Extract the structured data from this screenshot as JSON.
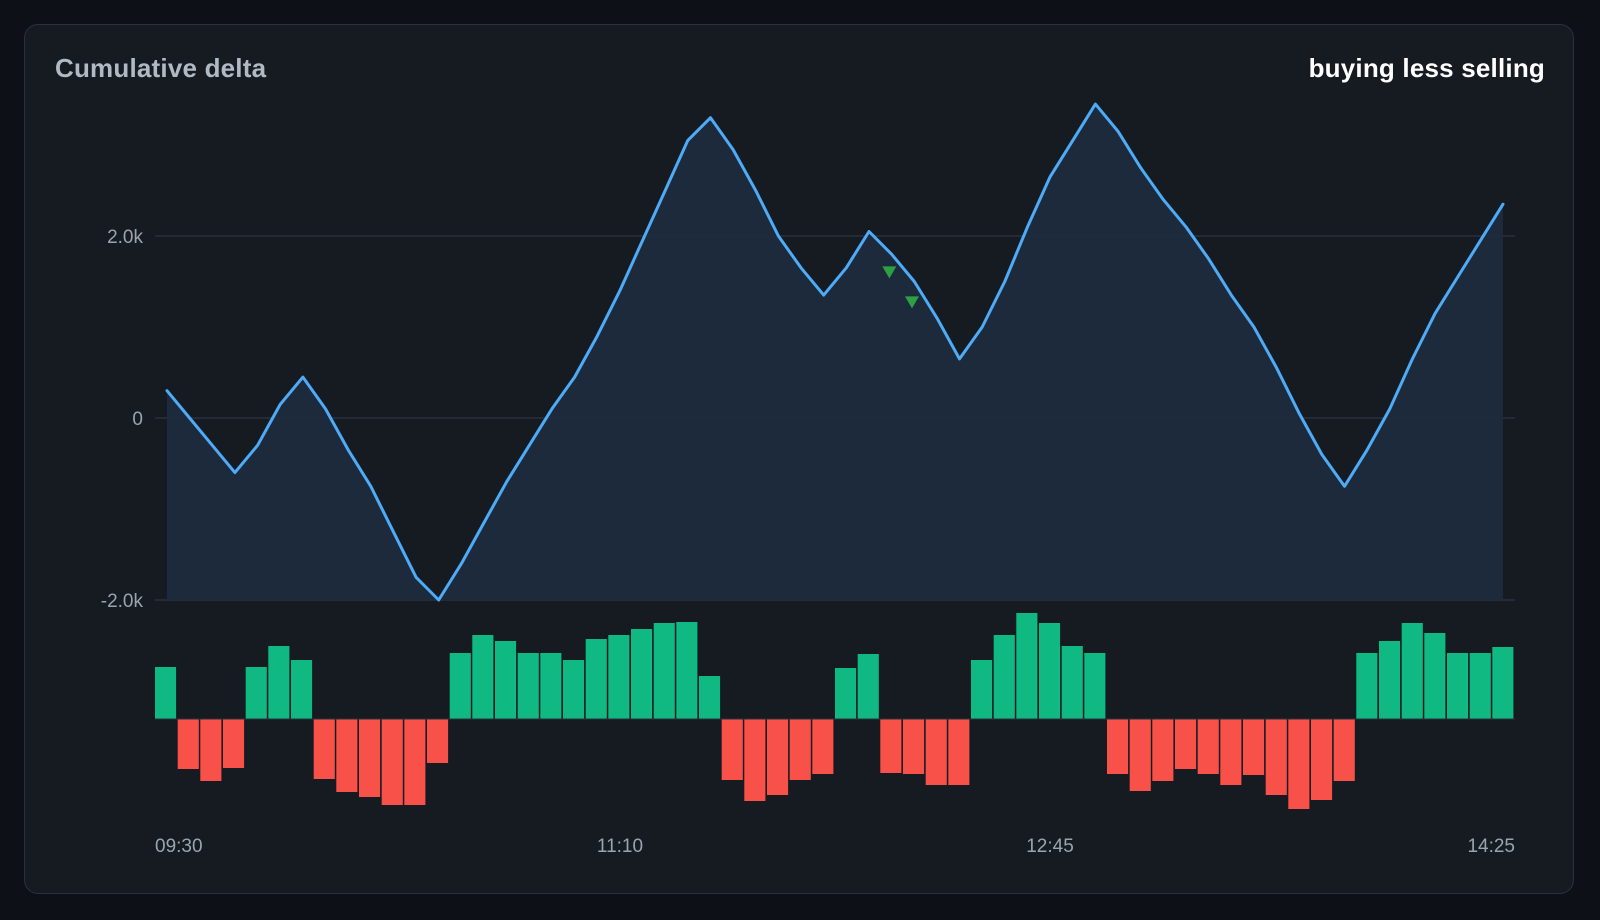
{
  "header": {
    "title": "Cumulative delta",
    "subtitle": "buying less selling"
  },
  "chart_data": {
    "type": "line",
    "title": "Cumulative delta",
    "subtitle": "buying less selling",
    "grid": true,
    "ylim": [
      -2000,
      3450
    ],
    "yticks": [
      {
        "value": 2000,
        "label": "2.0k"
      },
      {
        "value": 0,
        "label": "0"
      },
      {
        "value": -2000,
        "label": "-2.0k"
      }
    ],
    "x_ticks": [
      "09:30",
      "11:10",
      "12:45",
      "14:25"
    ],
    "line": {
      "name": "",
      "color": "#4dabf7",
      "fill": "#1d2b3e",
      "values": [
        300,
        0,
        -300,
        -600,
        -300,
        150,
        450,
        100,
        -350,
        -750,
        -1250,
        -1750,
        -2000,
        -1600,
        -1150,
        -700,
        -300,
        100,
        450,
        900,
        1400,
        1950,
        2500,
        3050,
        3300,
        2950,
        2500,
        2000,
        1650,
        1350,
        1650,
        2050,
        1800,
        1500,
        1100,
        650,
        1000,
        1500,
        2100,
        2650,
        3050,
        3450,
        3150,
        2750,
        2400,
        2100,
        1750,
        1350,
        1000,
        550,
        50,
        -400,
        -750,
        -350,
        100,
        650,
        1150,
        1550,
        1950,
        2350
      ]
    },
    "markers": [
      {
        "type": "triangle-down",
        "color": "#2ea043",
        "x_index": 31.9,
        "value": 1600
      },
      {
        "type": "triangle-down",
        "color": "#2ea043",
        "x_index": 32.9,
        "value": 1270
      }
    ],
    "bars": {
      "name": "",
      "positive_color": "#10b981",
      "negative_color": "#f85149",
      "values": [
        52,
        -50,
        -62,
        -49,
        52,
        73,
        59,
        -60,
        -73,
        -78,
        -86,
        -86,
        -44,
        66,
        84,
        78,
        66,
        66,
        59,
        80,
        84,
        90,
        96,
        97,
        43,
        -61,
        -82,
        -76,
        -61,
        -55,
        51,
        65,
        -54,
        -55,
        -66,
        -66,
        59,
        84,
        106,
        96,
        73,
        66,
        -55,
        -72,
        -62,
        -50,
        -55,
        -66,
        -56,
        -76,
        -90,
        -81,
        -62,
        66,
        78,
        96,
        86,
        66,
        66,
        72
      ]
    }
  }
}
